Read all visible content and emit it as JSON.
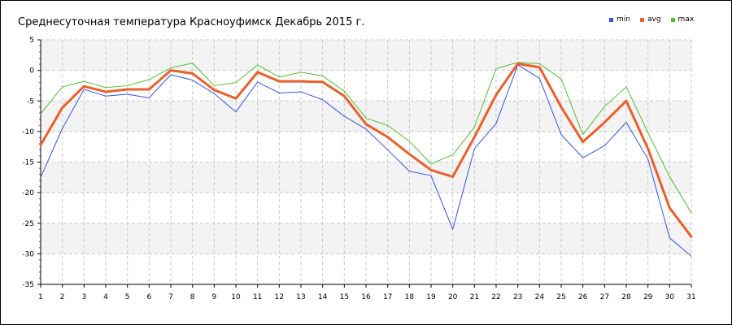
{
  "window": {
    "background": "#ffffff",
    "border": "#000000"
  },
  "chart_data": {
    "type": "line",
    "title": "Среднесуточная температура Красноуфимск  Декабрь 2015 г.",
    "xlabel": "",
    "ylabel": "",
    "x": [
      1,
      2,
      3,
      4,
      5,
      6,
      7,
      8,
      9,
      10,
      11,
      12,
      13,
      14,
      15,
      16,
      17,
      18,
      19,
      20,
      21,
      22,
      23,
      24,
      25,
      26,
      27,
      28,
      29,
      30,
      31
    ],
    "ylim": [
      -35,
      5
    ],
    "yticks": [
      5,
      0,
      -5,
      -10,
      -15,
      -20,
      -25,
      -30,
      -35
    ],
    "grid": true,
    "legend_position": "top-right",
    "series": [
      {
        "name": "min",
        "color": "#3355dd",
        "values": [
          -17.5,
          -9.5,
          -3.1,
          -4.2,
          -3.9,
          -4.5,
          -0.7,
          -1.6,
          -3.8,
          -6.8,
          -1.9,
          -3.7,
          -3.5,
          -4.8,
          -7.5,
          -9.6,
          -13.0,
          -16.5,
          -17.2,
          -26.0,
          -12.8,
          -8.7,
          0.9,
          -1.3,
          -10.5,
          -14.3,
          -12.3,
          -8.5,
          -14.5,
          -27.4,
          -30.4
        ]
      },
      {
        "name": "avg",
        "color": "#e8602c",
        "values": [
          -12.2,
          -6.1,
          -2.6,
          -3.5,
          -3.1,
          -3.1,
          0.0,
          -0.5,
          -3.2,
          -4.6,
          -0.3,
          -1.8,
          -1.8,
          -1.9,
          -4.2,
          -8.8,
          -10.9,
          -13.7,
          -16.3,
          -17.4,
          -10.9,
          -4.0,
          1.1,
          0.5,
          -6.0,
          -11.7,
          -8.5,
          -5.0,
          -12.8,
          -22.5,
          -27.2
        ]
      },
      {
        "name": "max",
        "color": "#55bb33",
        "values": [
          -7.1,
          -2.7,
          -1.8,
          -2.8,
          -2.5,
          -1.5,
          0.4,
          1.2,
          -2.5,
          -2.0,
          0.9,
          -1.1,
          -0.3,
          -0.9,
          -3.4,
          -7.8,
          -9.0,
          -11.6,
          -15.3,
          -13.8,
          -9.3,
          0.3,
          1.3,
          1.1,
          -1.4,
          -10.5,
          -5.9,
          -2.7,
          -10.2,
          -17.4,
          -23.3
        ]
      }
    ]
  }
}
